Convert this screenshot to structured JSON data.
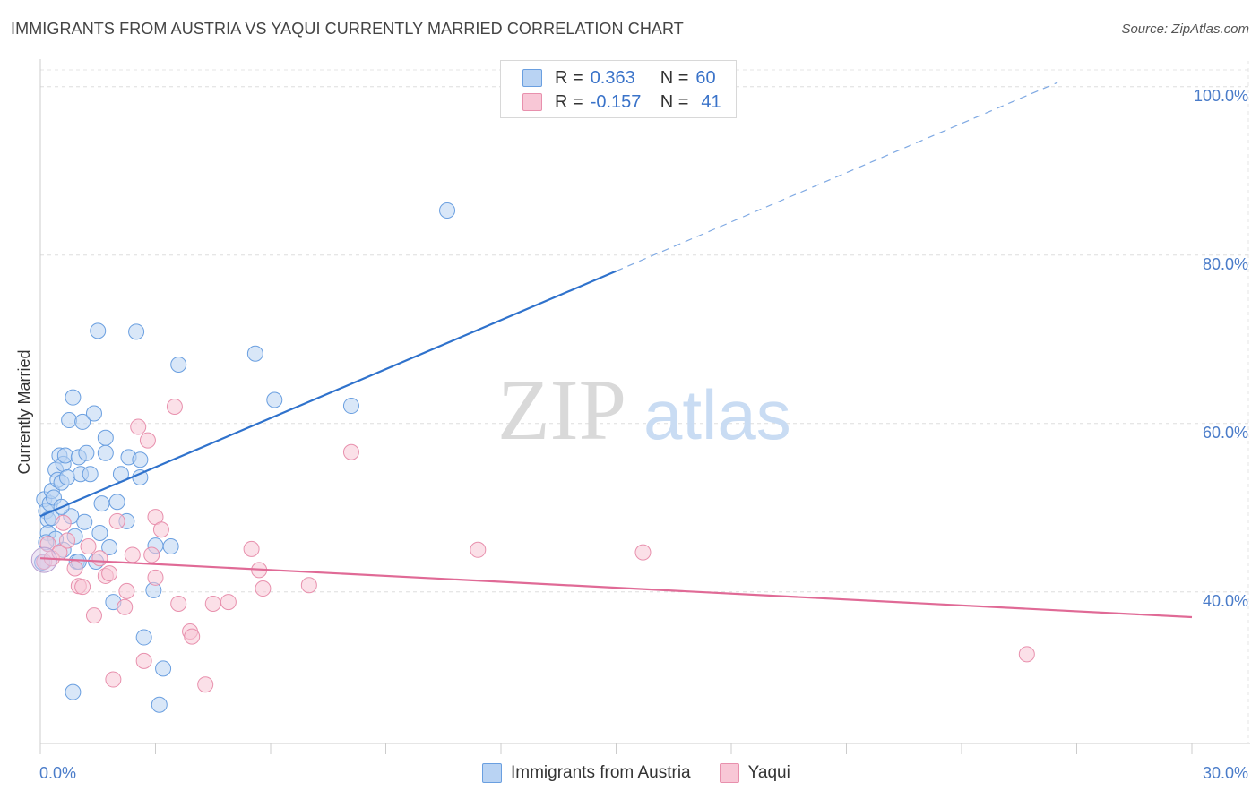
{
  "title": "IMMIGRANTS FROM AUSTRIA VS YAQUI CURRENTLY MARRIED CORRELATION CHART",
  "source": "Source: ZipAtlas.com",
  "watermark": {
    "zip": "ZIP",
    "atlas": "atlas"
  },
  "legend": {
    "r_label": "R =",
    "n_label": "N =",
    "rows": [
      {
        "r": "0.363",
        "n": "60",
        "color": "#a9c8f0"
      },
      {
        "r": "-0.157",
        "n": "41",
        "color": "#f6b8cc"
      }
    ]
  },
  "bottom_legend": [
    "Immigrants from Austria",
    "Yaqui"
  ],
  "chart_data": {
    "type": "scatter",
    "title": "IMMIGRANTS FROM AUSTRIA VS YAQUI CURRENTLY MARRIED CORRELATION CHART",
    "xlabel": "",
    "ylabel": "Currently Married",
    "xlim": [
      0,
      30
    ],
    "ylim": [
      22,
      102
    ],
    "x_tick_labels": [
      "0.0%",
      "30.0%"
    ],
    "y_ticks": [
      40,
      60,
      80,
      100
    ],
    "y_tick_labels": [
      "40.0%",
      "60.0%",
      "80.0%",
      "100.0%"
    ],
    "grid": true,
    "series": [
      {
        "name": "Immigrants from Austria",
        "color": "#6a9fe0",
        "fill": "#b9d3f3",
        "r": 0.363,
        "n": 60,
        "trend": {
          "x0": 0.0,
          "y0": 49.0,
          "x1": 15.0,
          "y1": 78.1,
          "dash_to_x": 26.5,
          "dash_to_y": 100.5
        },
        "points": [
          [
            0.1,
            51.0
          ],
          [
            0.15,
            49.6
          ],
          [
            0.2,
            48.6
          ],
          [
            0.25,
            50.5
          ],
          [
            0.3,
            52.0
          ],
          [
            0.35,
            51.2
          ],
          [
            0.4,
            54.5
          ],
          [
            0.45,
            53.3
          ],
          [
            0.5,
            56.2
          ],
          [
            0.55,
            53.0
          ],
          [
            0.6,
            55.2
          ],
          [
            0.65,
            56.2
          ],
          [
            0.7,
            53.6
          ],
          [
            0.75,
            60.4
          ],
          [
            0.8,
            49.0
          ],
          [
            0.85,
            63.1
          ],
          [
            0.9,
            46.6
          ],
          [
            0.95,
            43.6
          ],
          [
            1.0,
            56.0
          ],
          [
            1.05,
            54.0
          ],
          [
            1.1,
            60.2
          ],
          [
            1.15,
            48.3
          ],
          [
            1.2,
            56.5
          ],
          [
            1.3,
            54.0
          ],
          [
            1.4,
            61.2
          ],
          [
            1.45,
            43.6
          ],
          [
            1.5,
            71.0
          ],
          [
            1.55,
            47.0
          ],
          [
            1.6,
            50.5
          ],
          [
            1.7,
            58.3
          ],
          [
            1.7,
            56.5
          ],
          [
            1.8,
            45.3
          ],
          [
            1.9,
            38.8
          ],
          [
            2.0,
            50.7
          ],
          [
            2.1,
            54.0
          ],
          [
            2.25,
            48.4
          ],
          [
            2.3,
            56.0
          ],
          [
            2.5,
            70.9
          ],
          [
            2.6,
            55.7
          ],
          [
            2.6,
            53.6
          ],
          [
            2.7,
            34.6
          ],
          [
            2.95,
            40.2
          ],
          [
            3.0,
            45.5
          ],
          [
            3.2,
            30.9
          ],
          [
            3.4,
            45.4
          ],
          [
            3.6,
            67.0
          ],
          [
            5.6,
            68.3
          ],
          [
            6.1,
            62.8
          ],
          [
            8.1,
            62.1
          ],
          [
            10.6,
            85.3
          ],
          [
            0.85,
            28.1
          ],
          [
            3.1,
            26.6
          ],
          [
            0.3,
            48.8
          ],
          [
            1.0,
            43.6
          ],
          [
            0.6,
            45.0
          ],
          [
            0.2,
            47.0
          ],
          [
            0.4,
            46.3
          ],
          [
            0.15,
            45.9
          ],
          [
            0.55,
            50.1
          ],
          [
            0.05,
            43.5
          ]
        ]
      },
      {
        "name": "Yaqui",
        "color": "#e890ad",
        "fill": "#f8c7d6",
        "r": -0.157,
        "n": 41,
        "trend": {
          "x0": 0.0,
          "y0": 44.0,
          "x1": 30.0,
          "y1": 37.0
        },
        "points": [
          [
            0.1,
            43.6
          ],
          [
            0.2,
            45.7
          ],
          [
            0.3,
            44.0
          ],
          [
            0.5,
            44.7
          ],
          [
            0.6,
            48.2
          ],
          [
            0.7,
            46.1
          ],
          [
            0.9,
            42.8
          ],
          [
            1.0,
            40.7
          ],
          [
            1.1,
            40.6
          ],
          [
            1.25,
            45.4
          ],
          [
            1.4,
            37.2
          ],
          [
            1.55,
            44.0
          ],
          [
            1.7,
            41.9
          ],
          [
            1.8,
            42.2
          ],
          [
            1.9,
            29.6
          ],
          [
            2.0,
            48.4
          ],
          [
            2.2,
            38.2
          ],
          [
            2.25,
            40.1
          ],
          [
            2.4,
            44.4
          ],
          [
            2.55,
            59.6
          ],
          [
            2.7,
            31.8
          ],
          [
            2.8,
            58.0
          ],
          [
            2.9,
            44.4
          ],
          [
            3.0,
            48.9
          ],
          [
            3.0,
            41.7
          ],
          [
            3.15,
            47.4
          ],
          [
            3.5,
            62.0
          ],
          [
            3.6,
            38.6
          ],
          [
            3.9,
            35.3
          ],
          [
            3.95,
            34.7
          ],
          [
            4.3,
            29.0
          ],
          [
            4.5,
            38.6
          ],
          [
            4.9,
            38.8
          ],
          [
            5.5,
            45.1
          ],
          [
            5.7,
            42.6
          ],
          [
            5.8,
            40.4
          ],
          [
            7.0,
            40.8
          ],
          [
            8.1,
            56.6
          ],
          [
            11.4,
            45.0
          ],
          [
            15.7,
            44.7
          ],
          [
            25.7,
            32.6
          ]
        ]
      }
    ]
  }
}
